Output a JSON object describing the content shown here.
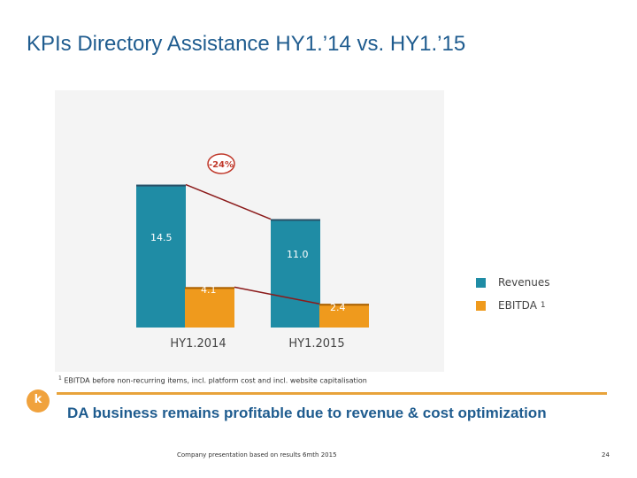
{
  "title": "KPIs Directory Assistance HY1.’14 vs. HY1.’15",
  "chart_data": {
    "type": "bar",
    "categories": [
      "HY1.2014",
      "HY1.2015"
    ],
    "series": [
      {
        "name": "Revenues",
        "values": [
          14.5,
          11.0
        ],
        "labels": [
          "14.5",
          "11.0"
        ],
        "color": "#1f8ca5"
      },
      {
        "name": "EBITDA",
        "name_superscript": "1",
        "values": [
          4.1,
          2.4
        ],
        "labels": [
          "4.1",
          "2.4"
        ],
        "color": "#ef9a1d"
      }
    ],
    "annotation": {
      "text": "-24%",
      "color": "#c0392b"
    },
    "ylim": [
      0,
      15
    ],
    "grid": false,
    "legend_position": "right"
  },
  "footnote": {
    "marker": "1",
    "text": " EBITDA before non-recurring items, incl. platform cost and incl. website capitalisation"
  },
  "logo_letter": "k",
  "headline": "DA business remains profitable due to revenue & cost optimization",
  "footer_note": "Company presentation based on results 6mth 2015",
  "page_number": "24",
  "colors": {
    "title": "#1f5c8f",
    "accent": "#e8a33b",
    "revenues": "#1f8ca5",
    "ebitda": "#ef9a1d",
    "trend_line": "#8b1a1a"
  }
}
